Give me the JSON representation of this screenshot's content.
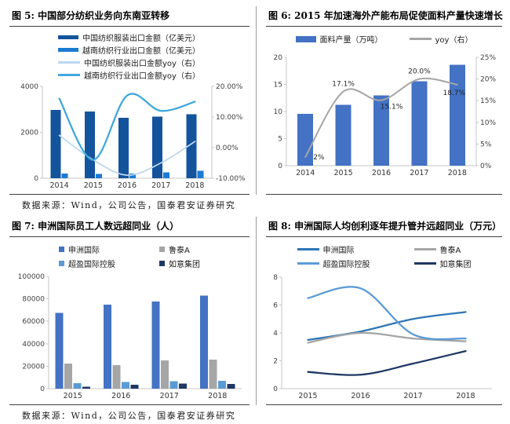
{
  "page": {
    "source_note_top": "数据来源：Wind，公司公告，国泰君安证券研究",
    "source_note_bottom": "数据来源：Wind，公司公告，国泰君安证券研究"
  },
  "chart_data": [
    {
      "id": "fig5",
      "type": "bar+line",
      "title": "图 5: 中国部分纺织业务向东南亚转移",
      "categories": [
        "2014",
        "2015",
        "2016",
        "2017",
        "2018"
      ],
      "bar_series": [
        {
          "name": "中国纺织服装出口金额（亿美元）",
          "color": "#14549C",
          "axis": "left",
          "values": [
            2980,
            2900,
            2640,
            2690,
            2780
          ]
        },
        {
          "name": "越南纺织行业出口金额（亿美元）",
          "color": "#1B7BD2",
          "axis": "left",
          "values": [
            210,
            195,
            205,
            255,
            330
          ]
        }
      ],
      "line_series": [
        {
          "name": "中国纺织服装出口金额yoy（右）",
          "color": "#BDD7EE",
          "axis": "right",
          "values": [
            4,
            -4,
            -9,
            -5,
            2
          ]
        },
        {
          "name": "越南纺织行业出口金额yoy（右）",
          "color": "#41A8DC",
          "axis": "right",
          "values": [
            16,
            -4,
            17,
            12,
            15
          ]
        }
      ],
      "left_axis": {
        "min": 0,
        "max": 4000,
        "ticks": [
          0,
          2000,
          4000
        ],
        "labels": [
          "0",
          "2000",
          "4000"
        ]
      },
      "right_axis": {
        "min": -10,
        "max": 20,
        "ticks": [
          -10,
          0,
          10,
          20
        ],
        "labels": [
          "-10.00%",
          "0.00%",
          "10.00%",
          "20.00%"
        ]
      },
      "legend_position": "top-left-stacked",
      "grid": false
    },
    {
      "id": "fig6",
      "type": "bar+line",
      "title": "图 6: 2015 年加速海外产能布局促使面料产量快速增长",
      "categories": [
        "2014",
        "2015",
        "2016",
        "2017",
        "2018"
      ],
      "bar_series": [
        {
          "name": "面料产量（万吨）",
          "color": "#4472C4",
          "axis": "left",
          "values": [
            9.6,
            11.2,
            13.0,
            15.6,
            18.6
          ]
        }
      ],
      "line_series": [
        {
          "name": "yoy（右）",
          "color": "#A6A6A6",
          "axis": "right",
          "values": [
            2,
            17.1,
            15.1,
            20.0,
            18.7
          ],
          "point_labels": [
            "2%",
            "17.1%",
            "15.1%",
            "20.0%",
            "18.7%"
          ]
        }
      ],
      "left_axis": {
        "min": 0,
        "max": 20,
        "ticks": [
          0,
          5,
          10,
          15,
          20
        ],
        "labels": [
          "0",
          "5",
          "10",
          "15",
          "20"
        ]
      },
      "right_axis": {
        "min": 0,
        "max": 25,
        "ticks": [
          0,
          5,
          10,
          15,
          20,
          25
        ],
        "labels": [
          "0%",
          "5%",
          "10%",
          "15%",
          "20%",
          "25%"
        ]
      },
      "legend_position": "top-center",
      "grid": false
    },
    {
      "id": "fig7",
      "type": "bar",
      "title": "图 7: 申洲国际员工人数远超同业（人）",
      "categories": [
        "2015",
        "2016",
        "2017",
        "2018"
      ],
      "bar_series": [
        {
          "name": "申洲国际",
          "color": "#4472C4",
          "axis": "left",
          "values": [
            67500,
            75000,
            77500,
            83000
          ]
        },
        {
          "name": "鲁泰A",
          "color": "#A6A6A6",
          "axis": "left",
          "values": [
            22500,
            21000,
            25200,
            25700
          ]
        },
        {
          "name": "超盈国际控股",
          "color": "#5B9BD5",
          "axis": "left",
          "values": [
            4800,
            5800,
            6500,
            7000
          ]
        },
        {
          "name": "如意集团",
          "color": "#1F3864",
          "axis": "left",
          "values": [
            1800,
            3600,
            4400,
            4100
          ]
        }
      ],
      "left_axis": {
        "min": 0,
        "max": 100000,
        "ticks": [
          0,
          20000,
          40000,
          60000,
          80000,
          100000
        ],
        "labels": [
          "0",
          "20000",
          "40000",
          "60000",
          "80000",
          "100000"
        ]
      },
      "legend_position": "top-center-grid",
      "grid": false
    },
    {
      "id": "fig8",
      "type": "line",
      "title": "图 8: 申洲国际人均创利逐年提升管并远超同业（万元）",
      "categories": [
        "2015",
        "2016",
        "2017",
        "2018"
      ],
      "line_series": [
        {
          "name": "申洲国际",
          "color": "#2E75B6",
          "axis": "left",
          "values": [
            3.5,
            4.1,
            5.0,
            5.5
          ]
        },
        {
          "name": "鲁泰A",
          "color": "#A6A6A6",
          "axis": "left",
          "values": [
            3.3,
            4.0,
            3.6,
            3.4
          ]
        },
        {
          "name": "超盈国际控股",
          "color": "#5B9BD5",
          "axis": "left",
          "values": [
            6.5,
            7.2,
            3.9,
            3.6
          ]
        },
        {
          "name": "如意集团",
          "color": "#1F3864",
          "axis": "left",
          "values": [
            1.2,
            1.0,
            1.8,
            2.7
          ]
        }
      ],
      "left_axis": {
        "min": 0,
        "max": 8,
        "ticks": [
          0,
          2,
          4,
          6,
          8
        ],
        "labels": [
          "0",
          "2",
          "4",
          "6",
          "8"
        ]
      },
      "legend_position": "top-center-grid",
      "grid": false
    }
  ]
}
